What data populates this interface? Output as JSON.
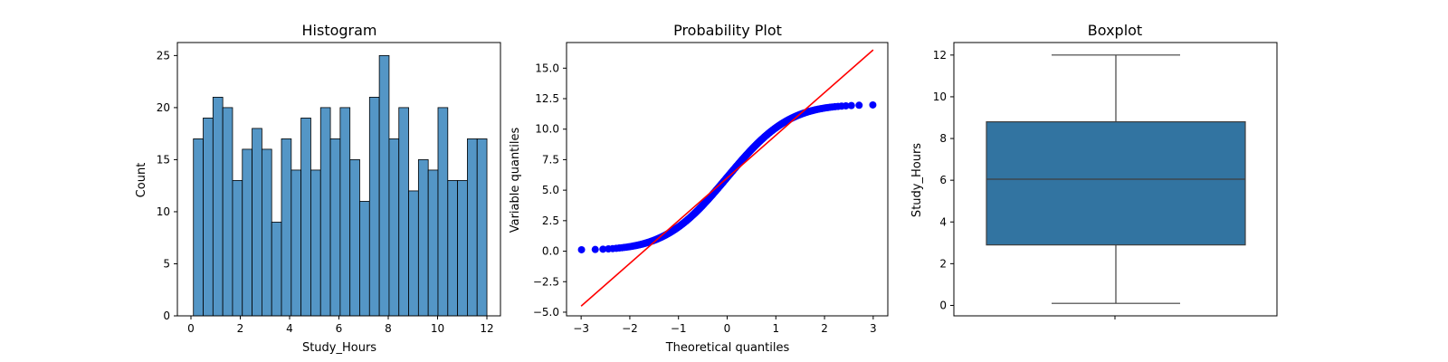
{
  "chart_data": [
    {
      "type": "bar",
      "title": "Histogram",
      "xlabel": "Study_Hours",
      "ylabel": "Count",
      "xlim": [
        -0.55,
        12.55
      ],
      "ylim": [
        0,
        26.25
      ],
      "bin_start": 0.1,
      "bin_width": 0.3967,
      "values": [
        17,
        19,
        21,
        20,
        13,
        16,
        18,
        16,
        9,
        17,
        14,
        19,
        14,
        20,
        17,
        20,
        15,
        11,
        21,
        25,
        17,
        20,
        12,
        15,
        14,
        20,
        13,
        13,
        17,
        17
      ],
      "x_ticks": [
        "0",
        "2",
        "4",
        "6",
        "8",
        "10",
        "12"
      ],
      "y_ticks": [
        "0",
        "5",
        "10",
        "15",
        "20",
        "25"
      ],
      "bar_color": "#5496c6",
      "edge_color": "#000000"
    },
    {
      "type": "scatter",
      "title": "Probability Plot",
      "xlabel": "Theoretical quantiles",
      "ylabel": "Variable quantiles",
      "xlim": [
        -3.3,
        3.3
      ],
      "ylim": [
        -5.3,
        17.1
      ],
      "n_points": 500,
      "min": 0.1,
      "max": 12.0,
      "fit_line": {
        "slope": 3.5,
        "intercept": 6.0
      },
      "x_ticks": [
        "−3",
        "−2",
        "−1",
        "0",
        "1",
        "2",
        "3"
      ],
      "y_ticks": [
        "−5.0",
        "−2.5",
        "0.0",
        "2.5",
        "5.0",
        "7.5",
        "10.0",
        "12.5",
        "15.0"
      ],
      "marker_color": "#0000ff",
      "line_color": "#ff0000"
    },
    {
      "type": "box",
      "title": "Boxplot",
      "ylabel": "Study_Hours",
      "ylim": [
        -0.5,
        12.6
      ],
      "min": 0.1,
      "q1": 2.9,
      "median": 6.05,
      "q3": 8.8,
      "max": 12.0,
      "y_ticks": [
        "0",
        "2",
        "4",
        "6",
        "8",
        "10",
        "12"
      ],
      "box_color": "#3274a1",
      "line_color": "#3f3f3f"
    }
  ]
}
